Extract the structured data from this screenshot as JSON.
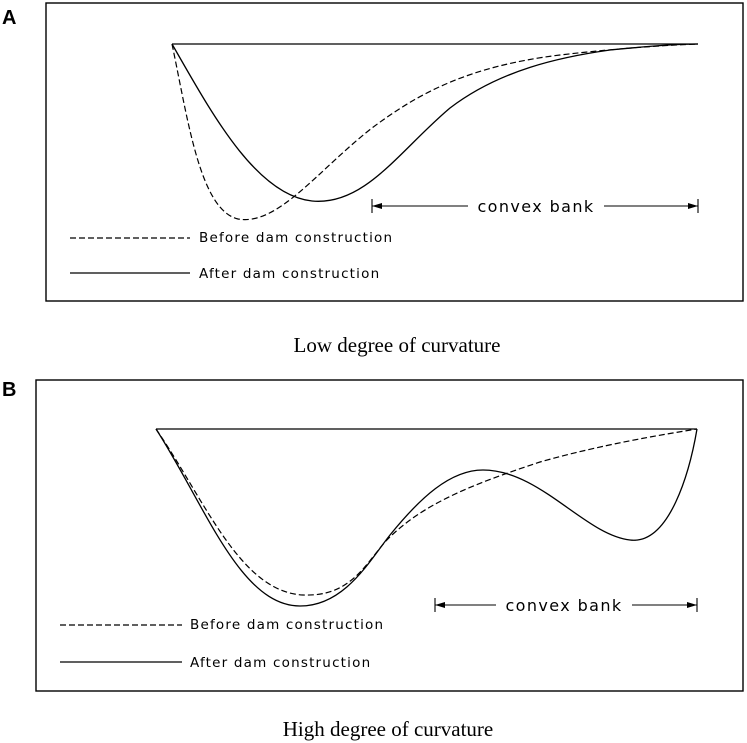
{
  "panels": [
    {
      "letter": "A",
      "caption": "Low degree of curvature",
      "legend": {
        "before_label": "Before dam construction",
        "after_label": "After dam construction"
      },
      "dimension_label": "convex bank"
    },
    {
      "letter": "B",
      "caption": "High degree of curvature",
      "legend": {
        "before_label": "Before dam construction",
        "after_label": "After dam construction"
      },
      "dimension_label": "convex bank"
    }
  ],
  "colors": {
    "line": "#000000",
    "background": "#ffffff"
  }
}
